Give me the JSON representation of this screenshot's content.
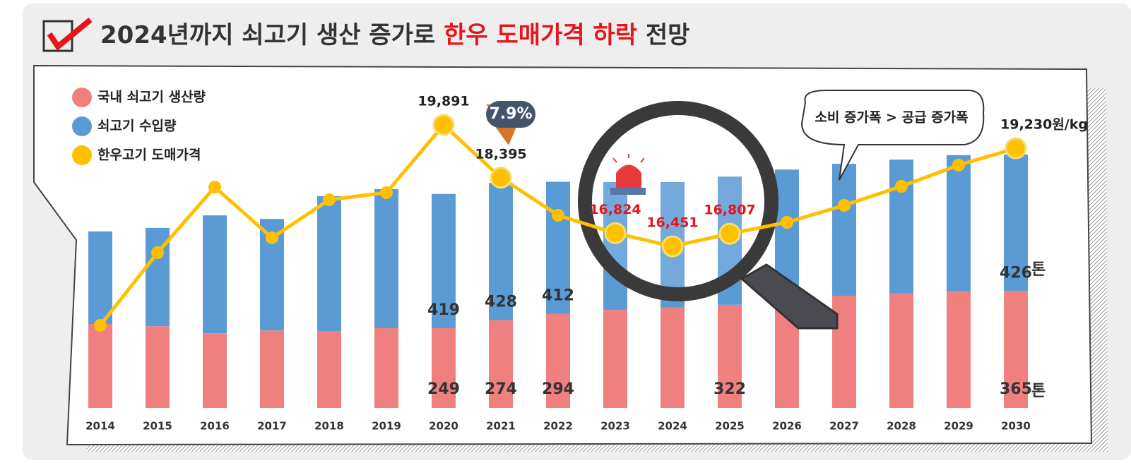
{
  "chart_data": {
    "type": "bar",
    "stacked": true,
    "title": [
      "2024년까지 쇠고기 생산 증가로",
      "한우 도매가격 하락",
      "전망"
    ],
    "categories": [
      "2014",
      "2015",
      "2016",
      "2017",
      "2018",
      "2019",
      "2020",
      "2021",
      "2022",
      "2023",
      "2024",
      "2025",
      "2026",
      "2027",
      "2028",
      "2029",
      "2030"
    ],
    "series": [
      {
        "name": "국내 쇠고기 생산량",
        "color": "#f08080",
        "values": [
          262,
          255,
          233,
          242,
          240,
          249,
          249,
          274,
          294,
          306,
          313,
          322,
          330,
          350,
          357,
          363,
          365
        ],
        "value_labels": [
          null,
          null,
          null,
          null,
          null,
          null,
          "249",
          "274",
          "294",
          null,
          null,
          "322",
          null,
          null,
          null,
          null,
          "365"
        ]
      },
      {
        "name": "쇠고기 수입량",
        "color": "#5b9bd5",
        "values": [
          289,
          307,
          368,
          348,
          421,
          434,
          419,
          428,
          412,
          399,
          392,
          400,
          414,
          412,
          418,
          426,
          426
        ],
        "value_labels": [
          null,
          null,
          null,
          null,
          null,
          null,
          "419",
          "428",
          "412",
          null,
          null,
          null,
          null,
          null,
          null,
          null,
          "426"
        ]
      },
      {
        "name": "한우고기 도매가격",
        "color": "#ffc000",
        "type": "line",
        "values": [
          14211,
          16271,
          18131,
          16691,
          17771,
          17971,
          19891,
          18395,
          17331,
          16824,
          16451,
          16807,
          17131,
          17611,
          18151,
          18751,
          19230
        ],
        "value_labels": [
          null,
          null,
          null,
          null,
          null,
          null,
          "19,891",
          "18,395",
          null,
          "16,824",
          "16,451",
          "16,807",
          null,
          null,
          null,
          null,
          "19,230원/kg"
        ]
      }
    ],
    "annotations": {
      "change_badge": "7.9%",
      "bubble": "소비 증가폭 > 공급 증가폭",
      "unit_domestic": "톤",
      "unit_import": "톤"
    }
  }
}
